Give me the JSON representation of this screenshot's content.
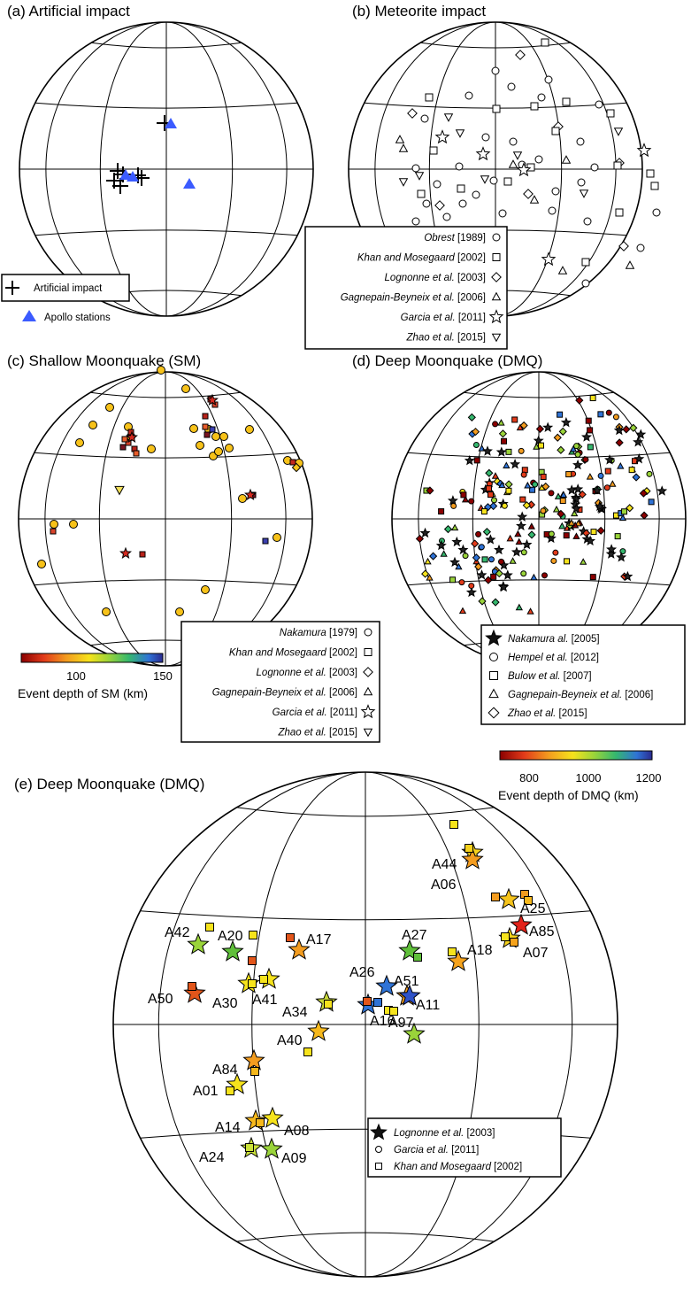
{
  "panels": {
    "a": {
      "title": "(a) Artificial impact",
      "legend": [
        "Artificial impact",
        "Apollo stations"
      ]
    },
    "b": {
      "title": "(b) Meteorite impact",
      "legend": [
        {
          "italic": "Obrest",
          "rest": " [1989]",
          "symbol": "circle"
        },
        {
          "italic": "Khan and Mosegaard",
          "rest": " [2002]",
          "symbol": "square"
        },
        {
          "italic": "Lognonne et al.",
          "rest": " [2003]",
          "symbol": "diamond"
        },
        {
          "italic": "Gagnepain-Beyneix et al.",
          "rest": " [2006]",
          "symbol": "triangle"
        },
        {
          "italic": "Garcia et al.",
          "rest": " [2011]",
          "symbol": "star"
        },
        {
          "italic": "Zhao et al.",
          "rest": " [2015]",
          "symbol": "invtriangle"
        }
      ]
    },
    "c": {
      "title": "(c) Shallow Moonquake (SM)",
      "legend": [
        {
          "italic": "Nakamura",
          "rest": " [1979]",
          "symbol": "circle"
        },
        {
          "italic": "Khan and Mosegaard",
          "rest": " [2002]",
          "symbol": "square"
        },
        {
          "italic": "Lognonne et al.",
          "rest": " [2003]",
          "symbol": "diamond"
        },
        {
          "italic": "Gagnepain-Beyneix et al.",
          "rest": " [2006]",
          "symbol": "triangle"
        },
        {
          "italic": "Garcia et al.",
          "rest": " [2011]",
          "symbol": "star"
        },
        {
          "italic": "Zhao et al.",
          "rest": " [2015]",
          "symbol": "invtriangle"
        }
      ],
      "colorbar": {
        "ticks": [
          "100",
          "150"
        ],
        "label": "Event depth of SM (km)"
      }
    },
    "d": {
      "title": "(d) Deep Moonquake (DMQ)",
      "legend": [
        {
          "italic": "Nakamura al.",
          "rest": " [2005]",
          "symbol": "star"
        },
        {
          "italic": "Hempel et al.",
          "rest": " [2012]",
          "symbol": "circle"
        },
        {
          "italic": "Bulow et al.",
          "rest": " [2007]",
          "symbol": "square"
        },
        {
          "italic": "Gagnepain-Beyneix et al.",
          "rest": " [2006]",
          "symbol": "triangle"
        },
        {
          "italic": "Zhao et al.",
          "rest": " [2015]",
          "symbol": "diamond"
        }
      ],
      "colorbar": {
        "ticks": [
          "800",
          "1000",
          "1200"
        ],
        "label": "Event depth of DMQ (km)"
      }
    },
    "e": {
      "title": "(e) Deep Moonquake (DMQ)",
      "legend": [
        {
          "italic": "Lognonne et al.",
          "rest": " [2003]",
          "symbol": "star"
        },
        {
          "italic": "Garcia et al.",
          "rest": " [2011]",
          "symbol": "circle"
        },
        {
          "italic": "Khan and Mosegaard",
          "rest": " [2002]",
          "symbol": "square"
        }
      ]
    }
  },
  "colors": {
    "apollo": "#3b5bff",
    "sm_marker": "#f7c21a",
    "colorbar": [
      "#8b0000",
      "#e23b1a",
      "#f39c1f",
      "#f6e31c",
      "#9ad43a",
      "#35b86e",
      "#2f73d6",
      "#2a2a90"
    ]
  },
  "dmq_labels": [
    "A44",
    "A06",
    "A25",
    "A85",
    "A07",
    "A42",
    "A20",
    "A17",
    "A27",
    "A18",
    "A50",
    "A30",
    "A41",
    "A26",
    "A51",
    "A34",
    "A11",
    "A16",
    "A97",
    "A40",
    "A84",
    "A01",
    "A14",
    "A08",
    "A24",
    "A09"
  ]
}
